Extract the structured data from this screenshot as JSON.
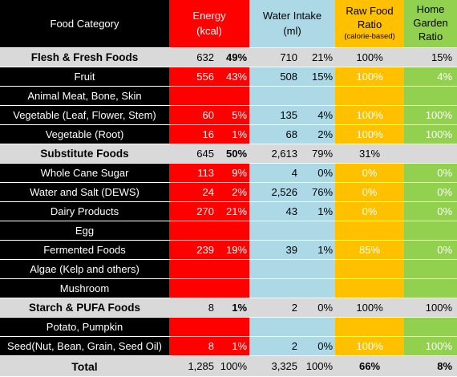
{
  "header": {
    "category": "Food Category",
    "energy_line1": "Energy",
    "energy_line2": "(kcal)",
    "water_line1": "Water Intake",
    "water_line2": "(ml)",
    "raw_line1": "Raw Food",
    "raw_line2": "Ratio",
    "raw_line3": "(calorie-based)",
    "home_line1": "Home",
    "home_line2": "Garden",
    "home_line3": "Ratio"
  },
  "colors": {
    "category_bg": "#000000",
    "energy_bg": "#ff0000",
    "water_bg": "#add8e6",
    "raw_bg": "#ffc000",
    "home_bg": "#92d050",
    "group_bg": "#d9d9d9"
  },
  "rows": [
    {
      "type": "group",
      "category": "Flesh & Fresh Foods",
      "energy": "632",
      "energy_pct": "49%",
      "water": "710",
      "water_pct": "21%",
      "raw": "100%",
      "home": "15%"
    },
    {
      "type": "item",
      "category": "Fruit",
      "energy": "556",
      "energy_pct": "43%",
      "water": "508",
      "water_pct": "15%",
      "raw": "100%",
      "home": "4%"
    },
    {
      "type": "item",
      "category": "Animal Meat, Bone, Skin",
      "energy": "",
      "energy_pct": "",
      "water": "",
      "water_pct": "",
      "raw": "",
      "home": ""
    },
    {
      "type": "item",
      "category": "Vegetable (Leaf, Flower, Stem)",
      "energy": "60",
      "energy_pct": "5%",
      "water": "135",
      "water_pct": "4%",
      "raw": "100%",
      "home": "100%"
    },
    {
      "type": "item",
      "category": "Vegetable (Root)",
      "energy": "16",
      "energy_pct": "1%",
      "water": "68",
      "water_pct": "2%",
      "raw": "100%",
      "home": "100%"
    },
    {
      "type": "group",
      "category": "Substitute Foods",
      "energy": "645",
      "energy_pct": "50%",
      "water": "2,613",
      "water_pct": "79%",
      "raw": "31%",
      "home": ""
    },
    {
      "type": "item",
      "category": "Whole Cane Sugar",
      "energy": "113",
      "energy_pct": "9%",
      "water": "4",
      "water_pct": "0%",
      "raw": "0%",
      "home": "0%"
    },
    {
      "type": "item",
      "category": "Water and Salt (DEWS)",
      "energy": "24",
      "energy_pct": "2%",
      "water": "2,526",
      "water_pct": "76%",
      "raw": "0%",
      "home": "0%"
    },
    {
      "type": "item",
      "category": "Dairy Products",
      "energy": "270",
      "energy_pct": "21%",
      "water": "43",
      "water_pct": "1%",
      "raw": "0%",
      "home": "0%"
    },
    {
      "type": "item",
      "category": "Egg",
      "energy": "",
      "energy_pct": "",
      "water": "",
      "water_pct": "",
      "raw": "",
      "home": ""
    },
    {
      "type": "item",
      "category": "Fermented Foods",
      "energy": "239",
      "energy_pct": "19%",
      "water": "39",
      "water_pct": "1%",
      "raw": "85%",
      "home": "0%"
    },
    {
      "type": "item",
      "category": "Algae (Kelp and others)",
      "energy": "",
      "energy_pct": "",
      "water": "",
      "water_pct": "",
      "raw": "",
      "home": ""
    },
    {
      "type": "item",
      "category": "Mushroom",
      "energy": "",
      "energy_pct": "",
      "water": "",
      "water_pct": "",
      "raw": "",
      "home": ""
    },
    {
      "type": "group",
      "category": "Starch & PUFA Foods",
      "energy": "8",
      "energy_pct": "1%",
      "water": "2",
      "water_pct": "0%",
      "raw": "100%",
      "home": "100%"
    },
    {
      "type": "item",
      "category": "Potato, Pumpkin",
      "energy": "",
      "energy_pct": "",
      "water": "",
      "water_pct": "",
      "raw": "",
      "home": ""
    },
    {
      "type": "item",
      "category": "Seed(Nut, Bean, Grain, Seed Oil)",
      "energy": "8",
      "energy_pct": "1%",
      "water": "2",
      "water_pct": "0%",
      "raw": "100%",
      "home": "100%"
    }
  ],
  "total": {
    "category": "Total",
    "energy": "1,285",
    "energy_pct": "100%",
    "water": "3,325",
    "water_pct": "100%",
    "raw": "66%",
    "home": "8%"
  }
}
